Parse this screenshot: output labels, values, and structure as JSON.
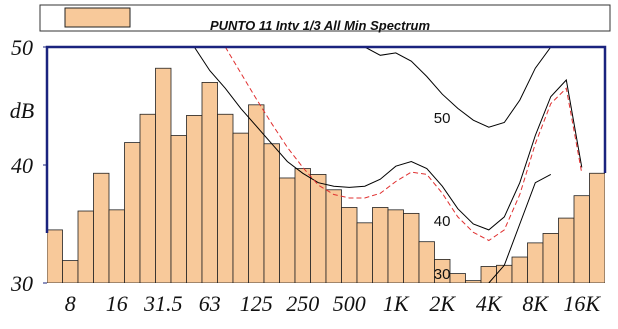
{
  "chart_data": {
    "type": "bar",
    "title": "PUNTO 11 Intv 1/3 All Min Spectrum",
    "y_label": "dB",
    "categories": [
      null,
      "8",
      null,
      null,
      "16",
      null,
      null,
      "31.5",
      null,
      null,
      "63",
      null,
      null,
      "125",
      null,
      null,
      "250",
      null,
      null,
      "500",
      null,
      null,
      "1K",
      null,
      null,
      "2K",
      null,
      null,
      "4K",
      null,
      null,
      "8K",
      null,
      null,
      "16K",
      null
    ],
    "series": [
      {
        "name": "PUNTO 11 Intv 1/3 All Min Spectrum",
        "color": "#f8c99a",
        "values": [
          34.5,
          31.9,
          36.1,
          39.3,
          36.2,
          41.9,
          44.3,
          48.2,
          42.5,
          44.2,
          47.0,
          44.3,
          42.7,
          45.1,
          41.8,
          38.9,
          39.7,
          39.2,
          37.9,
          36.4,
          35.1,
          36.4,
          36.2,
          35.9,
          33.5,
          32.0,
          30.8,
          30.2,
          31.4,
          31.5,
          32.2,
          33.4,
          34.2,
          35.5,
          37.4,
          39.3
        ]
      }
    ],
    "curves": [
      {
        "name": "50",
        "color": "#000000",
        "dash": false,
        "values": [
          null,
          null,
          null,
          null,
          null,
          null,
          null,
          null,
          null,
          null,
          null,
          null,
          null,
          null,
          null,
          null,
          null,
          null,
          null,
          null,
          50,
          49.3,
          49.5,
          48.8,
          47.5,
          46,
          44.8,
          43.8,
          43.2,
          43.6,
          45.5,
          48.2,
          50,
          null,
          null,
          null
        ]
      },
      {
        "name": "40",
        "color": "#000000",
        "dash": false,
        "values": [
          null,
          null,
          null,
          null,
          null,
          null,
          null,
          null,
          null,
          50,
          48,
          46.5,
          44.8,
          43.3,
          41.8,
          40.3,
          39.3,
          38.5,
          38.2,
          38.1,
          38.2,
          38.8,
          39.9,
          40.3,
          39.7,
          38.2,
          36.3,
          35.0,
          34.5,
          35.6,
          38.5,
          42.5,
          45.8,
          47.2,
          39.8,
          null
        ]
      },
      {
        "color": "#e03030",
        "dash": true,
        "values": [
          null,
          null,
          null,
          null,
          null,
          null,
          null,
          null,
          null,
          null,
          null,
          50,
          47.8,
          45.6,
          43.5,
          41.5,
          39.8,
          38.3,
          37.5,
          37.2,
          37.2,
          37.6,
          38.6,
          39.4,
          39.2,
          37.6,
          35.6,
          34.3,
          33.6,
          34.5,
          37.5,
          41.8,
          45.2,
          46.5,
          39.3,
          null
        ]
      },
      {
        "name": "30",
        "color": "#000000",
        "dash": false,
        "values": [
          null,
          null,
          null,
          null,
          null,
          null,
          null,
          null,
          null,
          null,
          null,
          null,
          null,
          null,
          null,
          null,
          null,
          null,
          null,
          null,
          null,
          null,
          null,
          null,
          null,
          null,
          null,
          null,
          30,
          31.5,
          35,
          38.5,
          39.2,
          null,
          null,
          null
        ]
      }
    ],
    "ylim": [
      30,
      50
    ],
    "yticks": [
      30,
      40,
      50
    ]
  }
}
